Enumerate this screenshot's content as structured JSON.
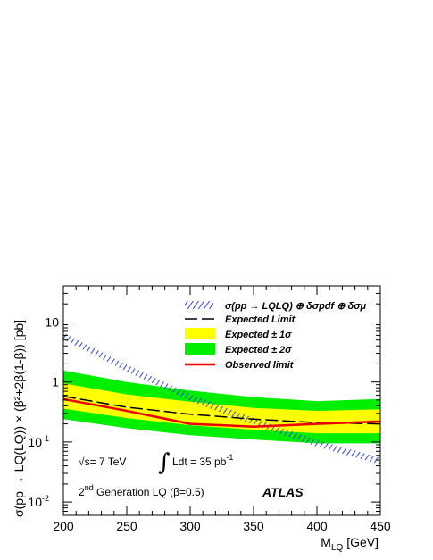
{
  "chart_data": {
    "type": "line",
    "title": "",
    "xlabel": "M",
    "xlabel_sub": "LQ",
    "xlabel_unit": " [GeV]",
    "ylabel": "σ(pp → LQ(LQ)) × (β²+2β(1-β)) [pb]",
    "xlim": [
      200,
      450
    ],
    "ylim": [
      0.006,
      40
    ],
    "yscale": "log",
    "x_ticks": [
      200,
      250,
      300,
      350,
      400,
      450
    ],
    "x_tick_labels": [
      "200",
      "250",
      "300",
      "350",
      "400",
      "450"
    ],
    "y_tick_labels": {
      "10": "10",
      "1": "1",
      "0.1": "10",
      "0.01": "10"
    },
    "y_tick_exponents": {
      "0.1": "-1",
      "0.01": "-2"
    },
    "legend": {
      "placement": "top-right",
      "entries": [
        {
          "label": "σ(pp → LQLQ) ⊕ δσpdf ⊕ δσμ"
        },
        {
          "label": "Expected Limit"
        },
        {
          "label": "Expected ± 1σ"
        },
        {
          "label": "Expected ± 2σ"
        },
        {
          "label": "Observed limit"
        }
      ]
    },
    "series": [
      {
        "name": "σ(pp → LQLQ) ⊕ δσpdf ⊕ δσμ",
        "style": "hatched-band",
        "color": "#3344dd",
        "x": [
          200,
          250,
          300,
          350,
          400,
          450
        ],
        "y": [
          5.8,
          1.7,
          0.55,
          0.22,
          0.095,
          0.048
        ]
      },
      {
        "name": "Expected Limit",
        "style": "dashed",
        "color": "#000000",
        "x": [
          200,
          250,
          300,
          350,
          400,
          450
        ],
        "y": [
          0.58,
          0.38,
          0.29,
          0.24,
          0.21,
          0.2
        ]
      },
      {
        "name": "Expected ± 1σ",
        "style": "band",
        "color": "#ffff00",
        "x": [
          200,
          250,
          300,
          350,
          400,
          450
        ],
        "low": [
          0.36,
          0.25,
          0.19,
          0.16,
          0.14,
          0.14
        ],
        "high": [
          0.95,
          0.62,
          0.47,
          0.37,
          0.33,
          0.35
        ]
      },
      {
        "name": "Expected ± 2σ",
        "style": "band",
        "color": "#00ee00",
        "x": [
          200,
          250,
          300,
          350,
          400,
          450
        ],
        "low": [
          0.24,
          0.17,
          0.13,
          0.11,
          0.095,
          0.095
        ],
        "high": [
          1.55,
          1.0,
          0.72,
          0.56,
          0.48,
          0.52
        ]
      },
      {
        "name": "Observed limit",
        "style": "solid",
        "color": "#ee0000",
        "x": [
          200,
          250,
          300,
          350,
          400,
          450
        ],
        "y": [
          0.52,
          0.33,
          0.2,
          0.18,
          0.2,
          0.22
        ]
      }
    ],
    "annotations": {
      "energy": "√s= 7 TeV",
      "lumi_prefix": "Ldt = 35 pb",
      "lumi_exp": "-1",
      "generation_prefix": "2",
      "generation_sup": "nd",
      "generation_suffix": " Generation LQ (β=0.5)",
      "experiment": "ATLAS"
    }
  }
}
